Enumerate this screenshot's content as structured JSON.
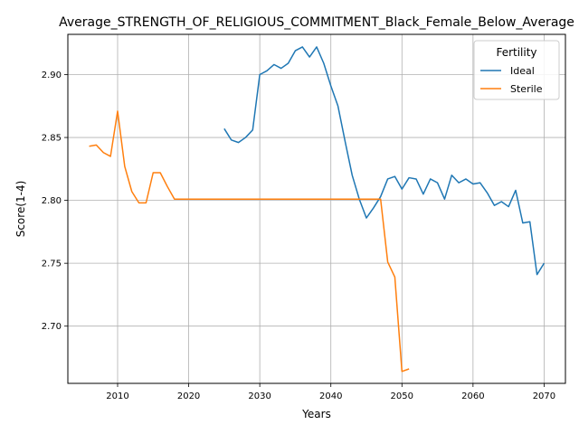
{
  "chart_data": {
    "type": "line",
    "title": "Average_STRENGTH_OF_RELIGIOUS_COMMITMENT_Black_Female_Below_Average",
    "xlabel": "Years",
    "ylabel": "Score(1-4)",
    "xlim": [
      2003,
      2073
    ],
    "ylim": [
      2.6545,
      2.932
    ],
    "xticks": [
      2010,
      2020,
      2030,
      2040,
      2050,
      2060,
      2070
    ],
    "yticks": [
      2.7,
      2.75,
      2.8,
      2.85,
      2.9
    ],
    "xtick_labels": [
      "2010",
      "2020",
      "2030",
      "2040",
      "2050",
      "2060",
      "2070"
    ],
    "ytick_labels": [
      "2.70",
      "2.75",
      "2.80",
      "2.85",
      "2.90"
    ],
    "grid": true,
    "legend": {
      "title": "Fertility",
      "placement": "top-right"
    },
    "series": [
      {
        "name": "Ideal",
        "color": "#1f77b4",
        "x": [
          2025,
          2026,
          2027,
          2028,
          2029,
          2030,
          2031,
          2032,
          2033,
          2034,
          2035,
          2036,
          2037,
          2038,
          2039,
          2040,
          2041,
          2042,
          2043,
          2044,
          2045,
          2046,
          2047,
          2048,
          2049,
          2050,
          2051,
          2052,
          2053,
          2054,
          2055,
          2056,
          2057,
          2058,
          2059,
          2060,
          2061,
          2062,
          2063,
          2064,
          2065,
          2066,
          2067,
          2068,
          2069,
          2070
        ],
        "y": [
          2.857,
          2.848,
          2.846,
          2.85,
          2.856,
          2.9,
          2.903,
          2.908,
          2.905,
          2.909,
          2.919,
          2.922,
          2.914,
          2.922,
          2.909,
          2.891,
          2.875,
          2.847,
          2.82,
          2.801,
          2.786,
          2.794,
          2.803,
          2.817,
          2.819,
          2.809,
          2.818,
          2.817,
          2.805,
          2.817,
          2.814,
          2.801,
          2.82,
          2.814,
          2.817,
          2.813,
          2.814,
          2.806,
          2.796,
          2.799,
          2.795,
          2.808,
          2.782,
          2.783,
          2.741,
          2.75
        ]
      },
      {
        "name": "Sterile",
        "color": "#ff7f0e",
        "x": [
          2006,
          2007,
          2008,
          2009,
          2010,
          2011,
          2012,
          2013,
          2014,
          2015,
          2016,
          2017,
          2018,
          2019,
          2020,
          2021,
          2022,
          2023,
          2024,
          2025,
          2026,
          2027,
          2028,
          2029,
          2030,
          2031,
          2032,
          2033,
          2034,
          2035,
          2036,
          2037,
          2038,
          2039,
          2040,
          2041,
          2042,
          2043,
          2044,
          2045,
          2046,
          2047,
          2048,
          2049,
          2050,
          2051
        ],
        "y": [
          2.843,
          2.844,
          2.838,
          2.835,
          2.871,
          2.827,
          2.807,
          2.798,
          2.798,
          2.822,
          2.822,
          2.811,
          2.801,
          2.801,
          2.801,
          2.801,
          2.801,
          2.801,
          2.801,
          2.801,
          2.801,
          2.801,
          2.801,
          2.801,
          2.801,
          2.801,
          2.801,
          2.801,
          2.801,
          2.801,
          2.801,
          2.801,
          2.801,
          2.801,
          2.801,
          2.801,
          2.801,
          2.801,
          2.801,
          2.801,
          2.801,
          2.801,
          2.751,
          2.739,
          2.664,
          2.666
        ]
      }
    ]
  }
}
